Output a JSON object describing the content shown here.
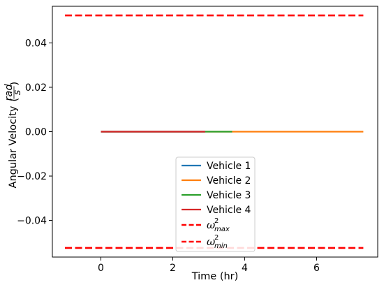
{
  "chart_data": {
    "type": "line",
    "xlabel": "Time (hr)",
    "ylabel": {
      "prefix": "Angular Velocity",
      "frac_numerator": "rad",
      "frac_denominator": "s"
    },
    "xlim": [
      -1.35,
      7.7
    ],
    "ylim": [
      -0.0565,
      0.0565
    ],
    "xticks": [
      0,
      2,
      4,
      6
    ],
    "xtick_labels": [
      "0",
      "2",
      "4",
      "6"
    ],
    "yticks": [
      -0.04,
      -0.02,
      0.0,
      0.02,
      0.04
    ],
    "ytick_labels": [
      "−0.04",
      "−0.02",
      "0.00",
      "0.02",
      "0.04"
    ],
    "grid": false,
    "legend_placement": "lower-center",
    "series": [
      {
        "name": "Vehicle 1",
        "color": "#1f77b4",
        "style": "solid",
        "x": [
          0,
          2.9
        ],
        "y": [
          0,
          0
        ]
      },
      {
        "name": "Vehicle 2",
        "color": "#ff7f0e",
        "style": "solid",
        "x": [
          0,
          7.3
        ],
        "y": [
          0,
          0
        ]
      },
      {
        "name": "Vehicle 3",
        "color": "#2ca02c",
        "style": "solid",
        "x": [
          0,
          3.65
        ],
        "y": [
          0,
          0
        ]
      },
      {
        "name": "Vehicle 4",
        "color": "#d62728",
        "style": "solid",
        "x": [
          0,
          2.9
        ],
        "y": [
          0,
          0
        ]
      }
    ],
    "bounds": [
      {
        "symbol": "ω",
        "superscript": "2",
        "subscript": "max",
        "color": "#ff0000",
        "style": "dashed",
        "x": [
          -1.0,
          7.3
        ],
        "y": [
          0.0524,
          0.0524
        ]
      },
      {
        "symbol": "ω",
        "superscript": "2",
        "subscript": "min",
        "color": "#ff0000",
        "style": "dashed",
        "x": [
          -1.0,
          7.3
        ],
        "y": [
          -0.0524,
          -0.0524
        ]
      }
    ]
  }
}
